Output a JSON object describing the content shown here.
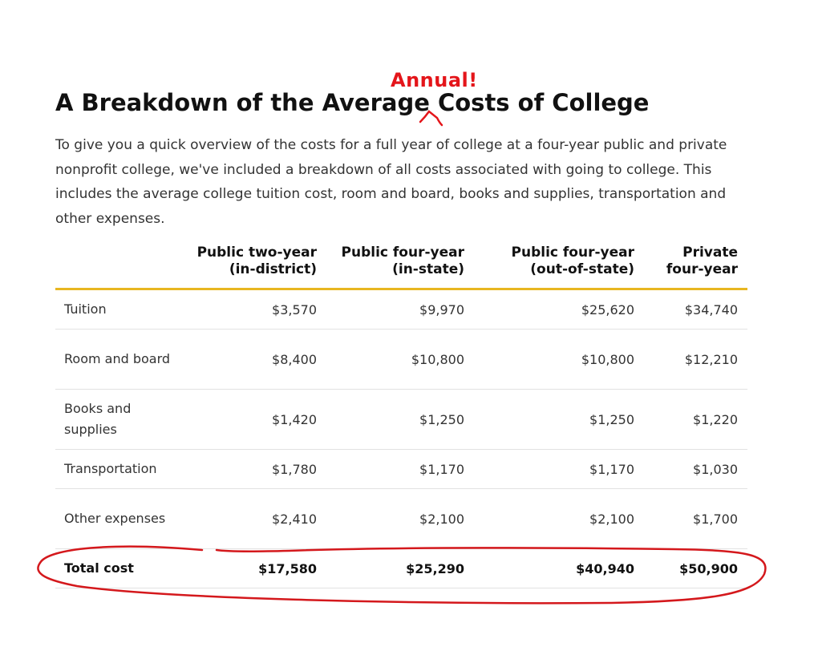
{
  "annotation_text": "Annual!",
  "title": "A Breakdown of the Average Costs of College",
  "intro": "To give you a quick overview of the costs for a full year of college at a four-year public and private nonprofit college, we've included a breakdown of all costs associated with going to college. This includes the average college tuition cost, room and board, books and supplies, transportation and other expenses.",
  "table": {
    "headers": [
      {
        "line1": "Public two-year",
        "line2": "(in-district)"
      },
      {
        "line1": "Public four-year",
        "line2": "(in-state)"
      },
      {
        "line1": "Public four-year",
        "line2": "(out-of-state)"
      },
      {
        "line1": "Private",
        "line2": "four-year"
      }
    ],
    "rows": [
      {
        "label": "Tuition",
        "values": [
          "$3,570",
          "$9,970",
          "$25,620",
          "$34,740"
        ]
      },
      {
        "label": "Room and board",
        "values": [
          "$8,400",
          "$10,800",
          "$10,800",
          "$12,210"
        ]
      },
      {
        "label": "Books and supplies",
        "values": [
          "$1,420",
          "$1,250",
          "$1,250",
          "$1,220"
        ]
      },
      {
        "label": "Transportation",
        "values": [
          "$1,780",
          "$1,170",
          "$1,170",
          "$1,030"
        ]
      },
      {
        "label": "Other expenses",
        "values": [
          "$2,410",
          "$2,100",
          "$2,100",
          "$1,700"
        ]
      }
    ],
    "total": {
      "label": "Total cost",
      "values": [
        "$17,580",
        "$25,290",
        "$40,940",
        "$50,900"
      ]
    }
  },
  "colors": {
    "annotation": "#e4151a",
    "header_rule": "#e8b621",
    "row_divider": "#e2e2e2",
    "title": "#111111",
    "body_text": "#333333"
  }
}
